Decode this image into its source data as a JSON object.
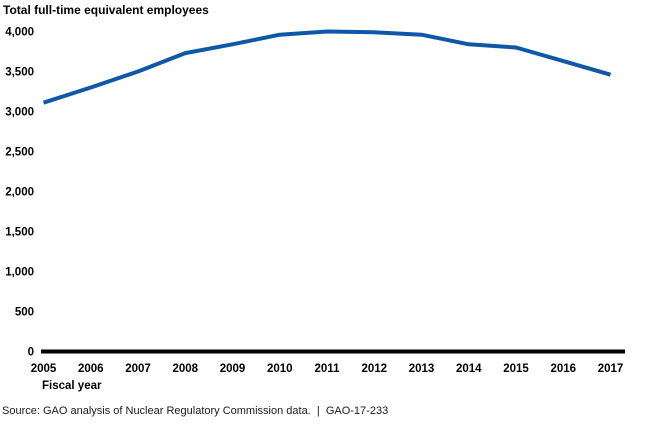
{
  "chart_data": {
    "type": "line",
    "title": "Total full-time equivalent employees",
    "xlabel": "Fiscal year",
    "ylabel": "",
    "categories": [
      "2005",
      "2006",
      "2007",
      "2008",
      "2009",
      "2010",
      "2011",
      "2012",
      "2013",
      "2014",
      "2015",
      "2016",
      "2017"
    ],
    "series": [
      {
        "name": "Total full-time equivalent employees",
        "values": [
          3110,
          3300,
          3500,
          3730,
          3840,
          3960,
          4000,
          3990,
          3960,
          3840,
          3800,
          3630,
          3460
        ]
      }
    ],
    "ylim": [
      0,
      4000
    ],
    "y_tick_values": [
      0,
      500,
      1000,
      1500,
      2000,
      2500,
      3000,
      3500,
      4000
    ],
    "y_tick_labels": [
      "0",
      "500",
      "1,000",
      "1,500",
      "2,000",
      "2,500",
      "3,000",
      "3,500",
      "4,000"
    ],
    "grid": false,
    "legend_position": "none",
    "line_color": "#0f58a8",
    "axis_color": "#000000"
  },
  "footer": {
    "source": "Source: GAO analysis of Nuclear Regulatory Commission data.  |  GAO-17-233"
  }
}
